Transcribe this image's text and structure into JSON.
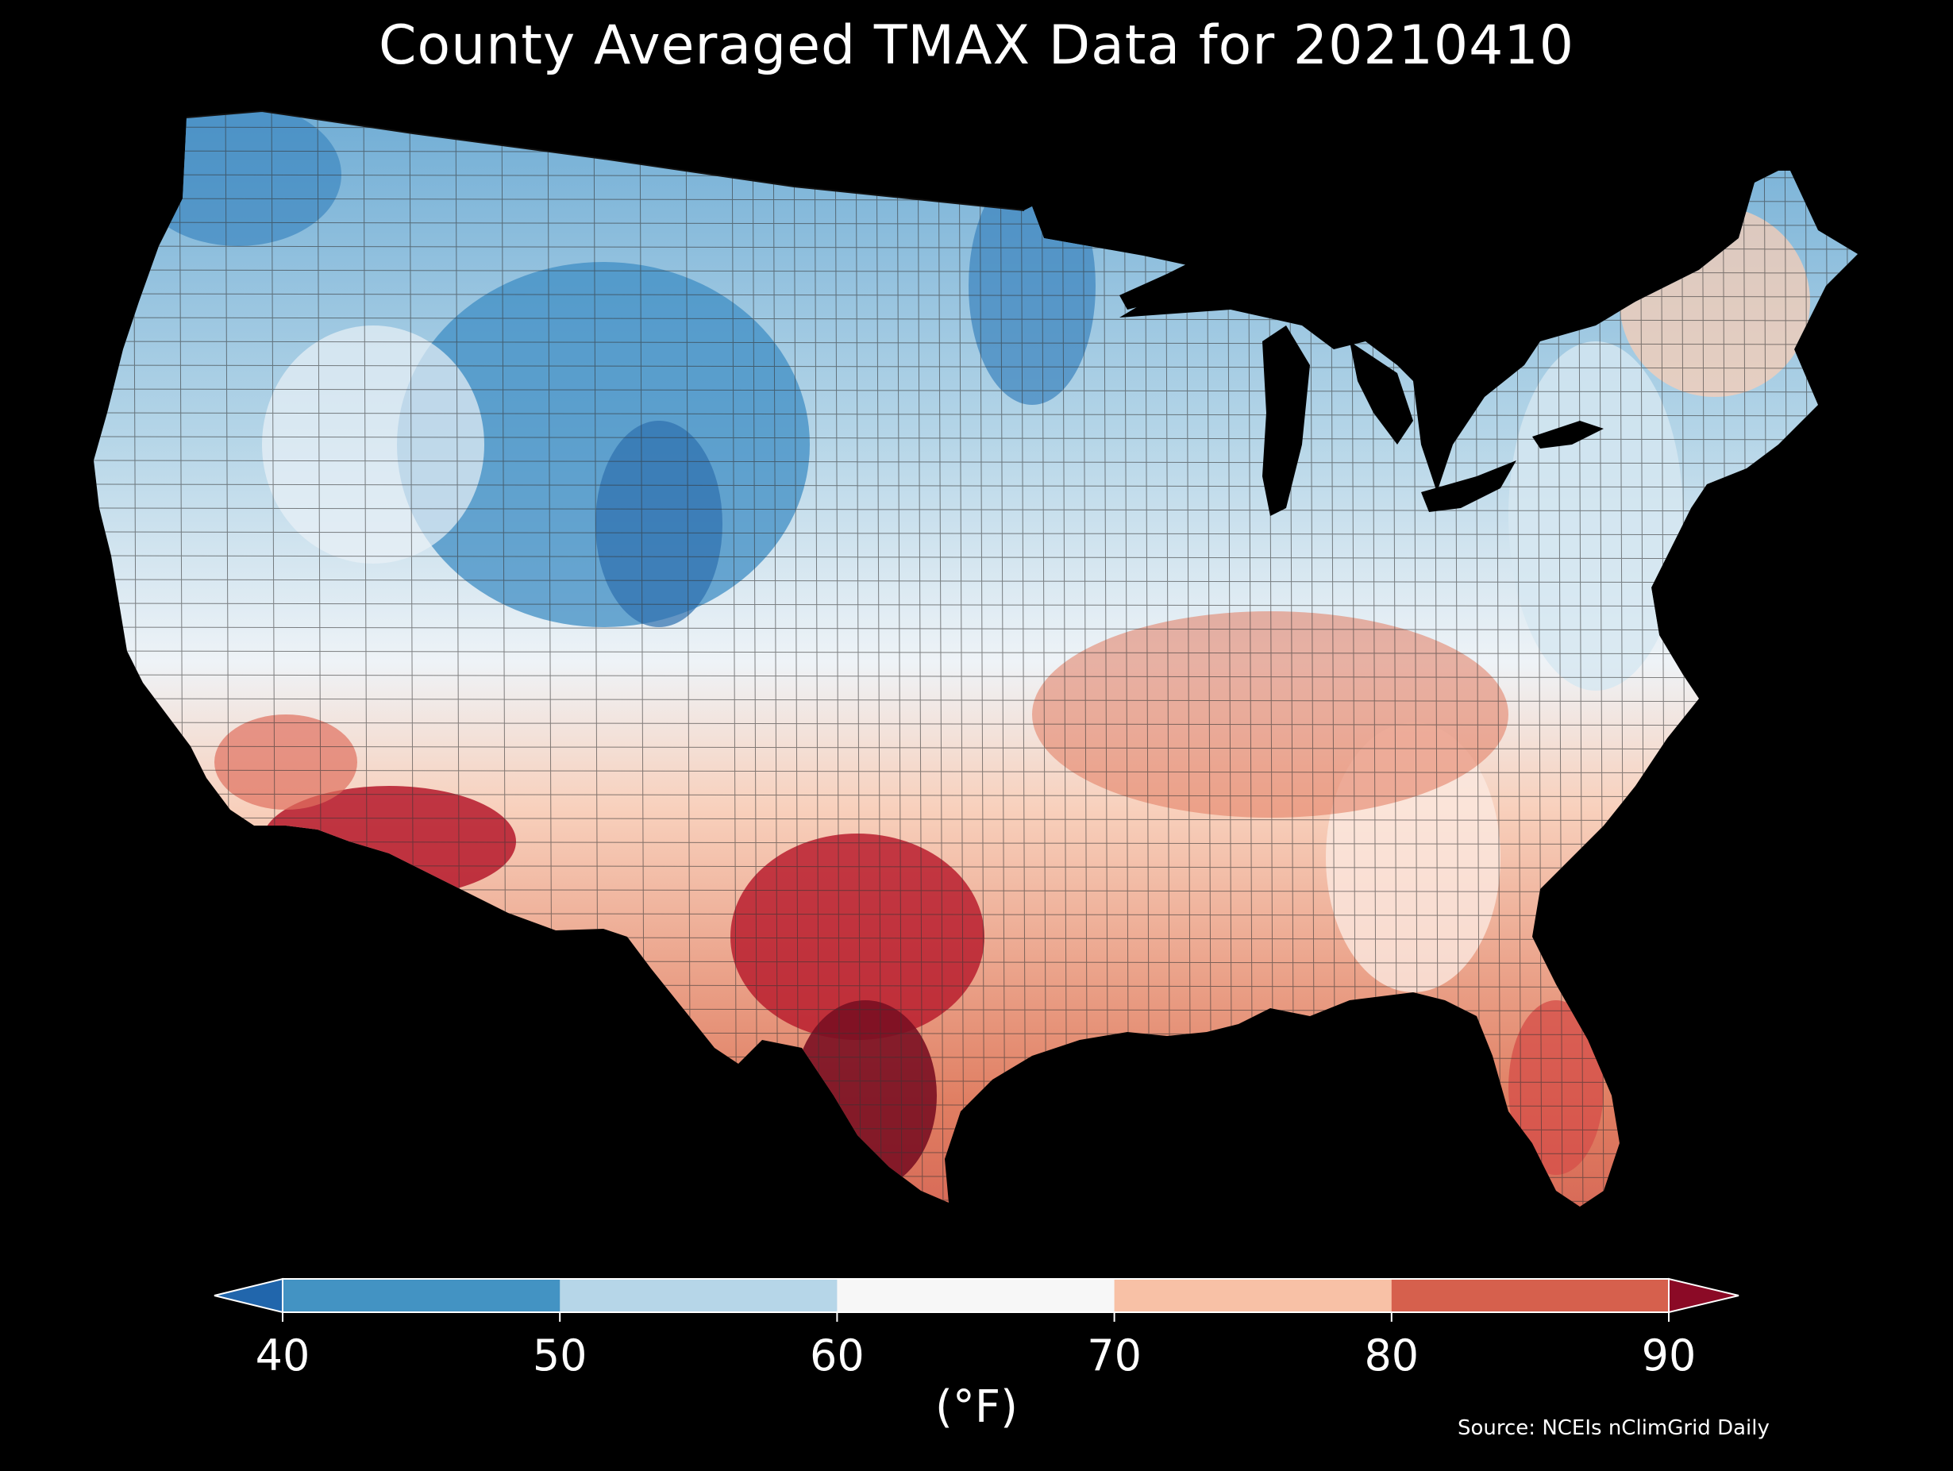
{
  "title": "County Averaged TMAX Data for 20210410",
  "colorbar": {
    "unit": "(°F)",
    "ticks": [
      "40",
      "50",
      "60",
      "70",
      "80",
      "90"
    ],
    "extend": "both",
    "bins": [
      {
        "range": "<40",
        "color": "#2166ac"
      },
      {
        "range": "40-50",
        "color": "#4393c3"
      },
      {
        "range": "50-60",
        "color": "#b6d6e8"
      },
      {
        "range": "60-70",
        "color": "#f7f7f7"
      },
      {
        "range": "70-80",
        "color": "#f8c1a6"
      },
      {
        "range": "80-90",
        "color": "#d6604d"
      },
      {
        "range": ">90",
        "color": "#8b0a26"
      }
    ]
  },
  "source": "Source: NCEIs nClimGrid Daily",
  "map": {
    "background": "#000000",
    "border_color": "#333333"
  }
}
